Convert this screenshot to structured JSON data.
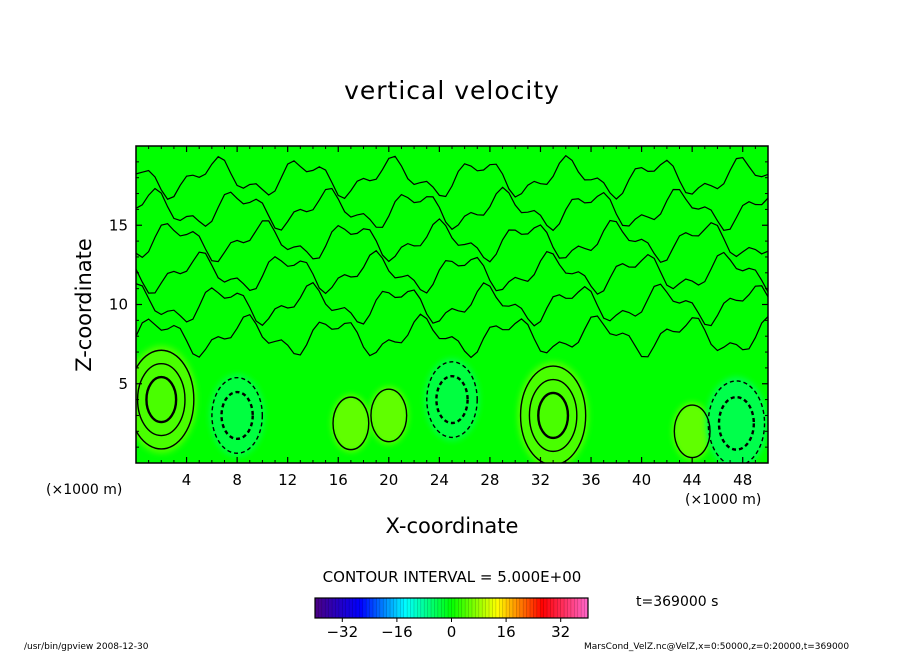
{
  "chart_data": {
    "type": "heatmap",
    "title": "vertical velocity",
    "xlabel": "X-coordinate",
    "ylabel": "Z-coordinate",
    "x_unit_label": "(×1000 m)",
    "xlim": [
      0,
      50
    ],
    "ylim": [
      0,
      20
    ],
    "x_ticks": [
      4,
      8,
      12,
      16,
      20,
      24,
      28,
      32,
      36,
      40,
      44,
      48
    ],
    "y_ticks": [
      5,
      10,
      15
    ],
    "contour_interval_text": "CONTOUR INTERVAL = 5.000E+00",
    "time_text": "t=369000 s",
    "colorbar": {
      "range": [
        -40,
        40
      ],
      "ticks": [
        -32,
        -16,
        0,
        16,
        32
      ],
      "colormap": [
        "#4b0082",
        "#0000ff",
        "#00ffff",
        "#00ff00",
        "#ffff00",
        "#ff0000",
        "#ff66cc"
      ]
    },
    "features": [
      {
        "x": 2,
        "z": 4,
        "value": 15
      },
      {
        "x": 8,
        "z": 3,
        "value": -10
      },
      {
        "x": 17,
        "z": 2.5,
        "value": 5
      },
      {
        "x": 20,
        "z": 3,
        "value": 5
      },
      {
        "x": 25,
        "z": 4,
        "value": -10
      },
      {
        "x": 33,
        "z": 3,
        "value": 15
      },
      {
        "x": 44,
        "z": 2,
        "value": 5
      },
      {
        "x": 47.5,
        "z": 2.5,
        "value": -12
      }
    ],
    "background_value": 0
  },
  "footer": {
    "left": "/usr/bin/gpview   2008-12-30",
    "right": "MarsCond_VelZ.nc@VelZ,x=0:50000,z=0:20000,t=369000"
  }
}
